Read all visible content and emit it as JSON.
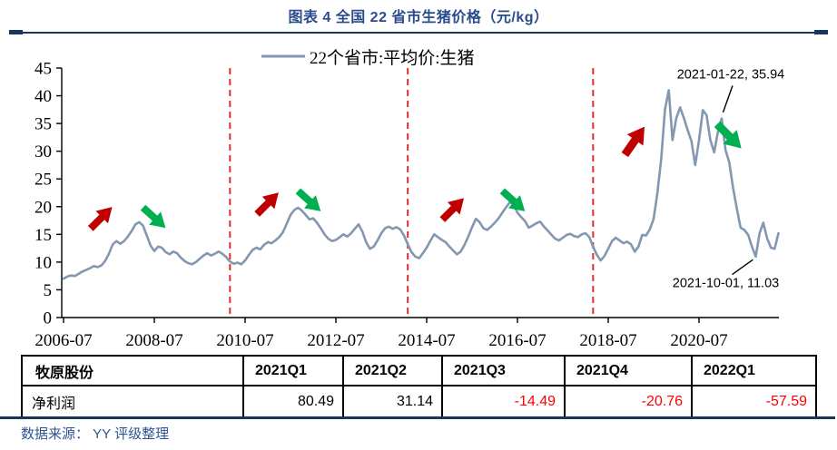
{
  "title": "图表 4 全国 22 省市生猪价格（元/kg）",
  "source": "数据来源： YY 评级整理",
  "colors": {
    "navy": "#17375E",
    "title_blue": "#2A4B8C",
    "source_blue": "#2E5496",
    "series_line": "#8497B0",
    "dashed_line": "#E03030",
    "arrow_up": "#C00000",
    "arrow_down": "#00B050",
    "negative_value": "#FF0000",
    "axis": "#000000"
  },
  "chart_data": {
    "type": "line",
    "title": "图表 4 全国 22 省市生猪价格（元/kg）",
    "legend": "22个省市:平均价:生猪",
    "legend_position": "top",
    "grid": false,
    "x_unit": "month",
    "x_start": "2006-07",
    "x_end": "2022-04",
    "xlim_months": [
      0,
      190
    ],
    "ylim": [
      0,
      45
    ],
    "y_ticks": [
      0,
      5,
      10,
      15,
      20,
      25,
      30,
      35,
      40,
      45
    ],
    "x_ticks": [
      "2006-07",
      "2008-07",
      "2010-07",
      "2012-07",
      "2014-07",
      "2016-07",
      "2018-07",
      "2020-07"
    ],
    "x_tick_interval_months": 24,
    "values": [
      7.0,
      7.4,
      7.6,
      7.5,
      7.9,
      8.3,
      8.6,
      8.9,
      9.3,
      9.1,
      9.4,
      10.2,
      11.5,
      13.2,
      13.8,
      13.3,
      13.8,
      14.6,
      15.6,
      16.8,
      17.2,
      16.6,
      14.8,
      13.0,
      12.0,
      12.8,
      12.6,
      11.8,
      11.4,
      11.9,
      11.6,
      10.8,
      10.2,
      9.8,
      9.6,
      10.0,
      10.6,
      11.2,
      11.6,
      11.2,
      11.5,
      11.9,
      11.5,
      10.9,
      10.1,
      9.7,
      9.9,
      9.6,
      10.3,
      11.3,
      12.2,
      12.6,
      12.3,
      13.1,
      13.6,
      13.4,
      13.9,
      14.5,
      15.4,
      16.9,
      18.5,
      19.4,
      19.8,
      19.3,
      18.5,
      17.7,
      17.9,
      17.1,
      16.1,
      15.0,
      14.2,
      13.8,
      14.0,
      14.5,
      15.0,
      14.6,
      15.2,
      16.0,
      16.8,
      15.5,
      13.6,
      12.4,
      12.8,
      13.9,
      15.2,
      16.1,
      16.4,
      16.0,
      16.3,
      15.9,
      14.8,
      13.2,
      11.8,
      11.0,
      10.7,
      11.6,
      12.6,
      13.9,
      15.0,
      14.5,
      14.0,
      13.6,
      12.8,
      12.1,
      11.4,
      11.9,
      13.1,
      14.6,
      16.3,
      17.8,
      17.2,
      16.1,
      15.8,
      16.4,
      17.1,
      17.9,
      18.9,
      19.9,
      20.8,
      20.4,
      18.9,
      18.1,
      17.4,
      16.2,
      16.6,
      17.0,
      17.3,
      16.4,
      15.7,
      14.9,
      14.2,
      13.9,
      14.4,
      14.9,
      15.1,
      14.7,
      14.5,
      15.0,
      15.2,
      14.5,
      12.8,
      11.3,
      10.3,
      11.1,
      12.4,
      13.8,
      14.4,
      13.9,
      13.4,
      13.7,
      13.2,
      11.9,
      12.8,
      14.9,
      14.8,
      15.9,
      17.8,
      22.5,
      28.5,
      37.5,
      41.0,
      32.0,
      36.0,
      37.9,
      36.0,
      33.8,
      31.8,
      27.5,
      32.0,
      37.4,
      36.5,
      32.0,
      29.8,
      33.5,
      35.9,
      30.2,
      28.0,
      23.4,
      19.6,
      16.2,
      15.8,
      14.9,
      12.8,
      11.0,
      15.2,
      17.1,
      14.3,
      12.6,
      12.4,
      15.2
    ],
    "dashed_vlines": [
      "2010-03",
      "2014-02",
      "2018-03"
    ],
    "trend_arrows": [
      {
        "dir": "up",
        "month": "2007-05",
        "value": 18.0,
        "angle": -45,
        "size": 0.8
      },
      {
        "dir": "down",
        "month": "2008-07",
        "value": 18.0,
        "angle": 42,
        "size": 0.8
      },
      {
        "dir": "up",
        "month": "2011-01",
        "value": 20.6,
        "angle": -45,
        "size": 0.8
      },
      {
        "dir": "down",
        "month": "2011-12",
        "value": 21.0,
        "angle": 42,
        "size": 0.8
      },
      {
        "dir": "up",
        "month": "2015-02",
        "value": 19.6,
        "angle": -45,
        "size": 0.8
      },
      {
        "dir": "down",
        "month": "2016-06",
        "value": 21.0,
        "angle": 42,
        "size": 0.8
      },
      {
        "dir": "up",
        "month": "2019-02",
        "value": 31.9,
        "angle": -55,
        "size": 0.9
      },
      {
        "dir": "down",
        "month": "2021-03",
        "value": 32.7,
        "angle": 45,
        "size": 0.9
      }
    ],
    "annotations": [
      {
        "label": "2021-01-22, 35.94",
        "month": "2021-01",
        "value": 35.94,
        "line_dx": 12,
        "line_dy": -36,
        "text_dx": 10,
        "text_dy": -44
      },
      {
        "label": "2021-10-01, 11.03",
        "month": "2021-10",
        "value": 11.03,
        "line_dx": -26,
        "line_dy": 20,
        "text_dx": -33,
        "text_dy": 34
      }
    ]
  },
  "table": {
    "header": [
      "牧原股份",
      "2021Q1",
      "2021Q2",
      "2021Q3",
      "2021Q4",
      "2022Q1"
    ],
    "rows": [
      {
        "label": "净利润",
        "values": [
          "80.49",
          "31.14",
          "-14.49",
          "-20.76",
          "-57.59"
        ]
      }
    ]
  }
}
